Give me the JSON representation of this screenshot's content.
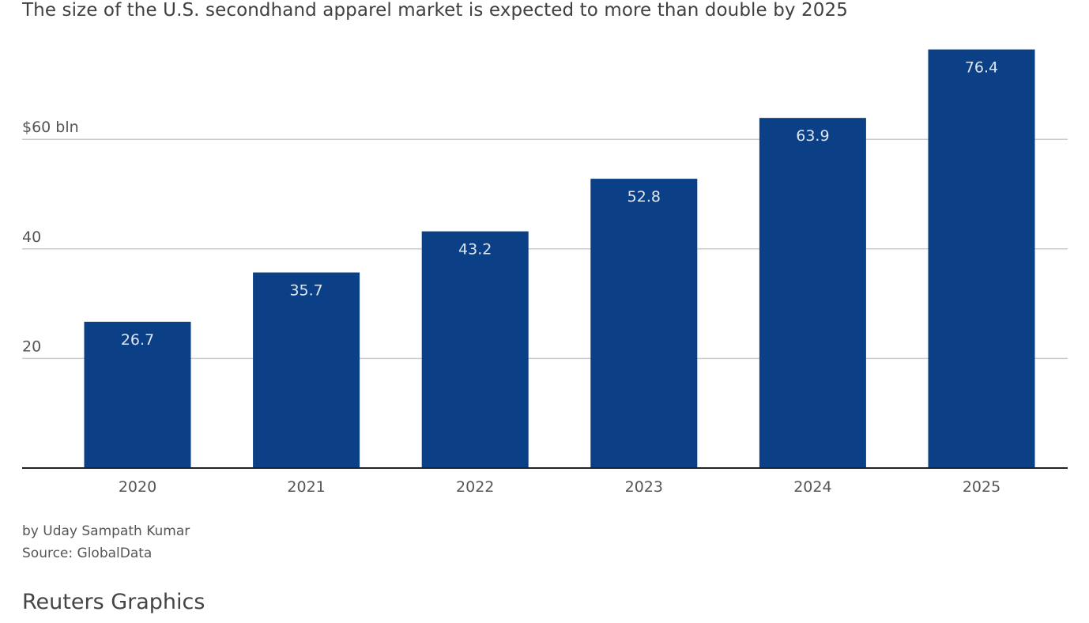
{
  "chart_data": {
    "type": "bar",
    "title": "The size of the U.S. secondhand apparel market is expected to more than double by 2025",
    "categories": [
      "2020",
      "2021",
      "2022",
      "2023",
      "2024",
      "2025"
    ],
    "values": [
      26.7,
      35.7,
      43.2,
      52.8,
      63.9,
      76.4
    ],
    "value_labels": [
      "26.7",
      "35.7",
      "43.2",
      "52.8",
      "63.9",
      "76.4"
    ],
    "y_ticks": [
      {
        "value": 20,
        "label": "20"
      },
      {
        "value": 40,
        "label": "40"
      },
      {
        "value": 60,
        "label": "$60 bln"
      }
    ],
    "ylim": [
      0,
      77
    ],
    "xlabel": "",
    "ylabel": "",
    "grid": true,
    "colors": {
      "bar": "#0b3f86",
      "bar_label": "#dfe6f1",
      "grid": "#cccccc",
      "axis": "#222222",
      "text": "#555555"
    }
  },
  "credits": {
    "byline": "by Uday Sampath Kumar",
    "source": "Source: GlobalData",
    "brand": "Reuters Graphics"
  }
}
